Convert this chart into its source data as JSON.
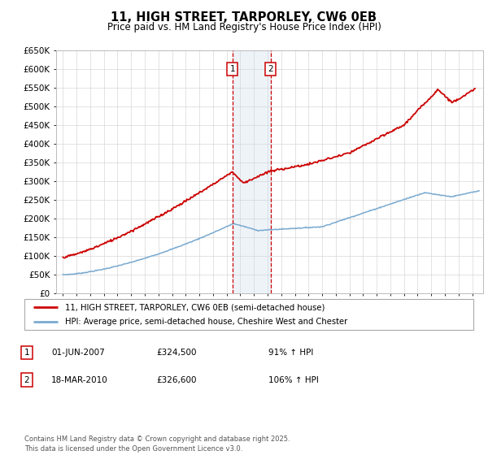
{
  "title": "11, HIGH STREET, TARPORLEY, CW6 0EB",
  "subtitle": "Price paid vs. HM Land Registry's House Price Index (HPI)",
  "ylim": [
    0,
    650000
  ],
  "yticks": [
    0,
    50000,
    100000,
    150000,
    200000,
    250000,
    300000,
    350000,
    400000,
    450000,
    500000,
    550000,
    600000,
    650000
  ],
  "ytick_labels": [
    "£0",
    "£50K",
    "£100K",
    "£150K",
    "£200K",
    "£250K",
    "£300K",
    "£350K",
    "£400K",
    "£450K",
    "£500K",
    "£550K",
    "£600K",
    "£650K"
  ],
  "xlim_start": 1994.5,
  "xlim_end": 2025.8,
  "transaction1": {
    "year": 2007.42,
    "price": 324500,
    "label": "1",
    "date": "01-JUN-2007",
    "pct": "91%",
    "direction": "↑"
  },
  "transaction2": {
    "year": 2010.21,
    "price": 326600,
    "label": "2",
    "date": "18-MAR-2010",
    "pct": "106%",
    "direction": "↑"
  },
  "property_color": "#cc0000",
  "hpi_color": "#7aaad0",
  "shade_color": "#c8d8ea",
  "vline_color": "#cc0000",
  "legend_property": "11, HIGH STREET, TARPORLEY, CW6 0EB (semi-detached house)",
  "legend_hpi": "HPI: Average price, semi-detached house, Cheshire West and Chester",
  "footnote": "Contains HM Land Registry data © Crown copyright and database right 2025.\nThis data is licensed under the Open Government Licence v3.0.",
  "table_rows": [
    [
      "1",
      "01-JUN-2007",
      "£324,500",
      "91% ↑ HPI"
    ],
    [
      "2",
      "18-MAR-2010",
      "£326,600",
      "106% ↑ HPI"
    ]
  ]
}
